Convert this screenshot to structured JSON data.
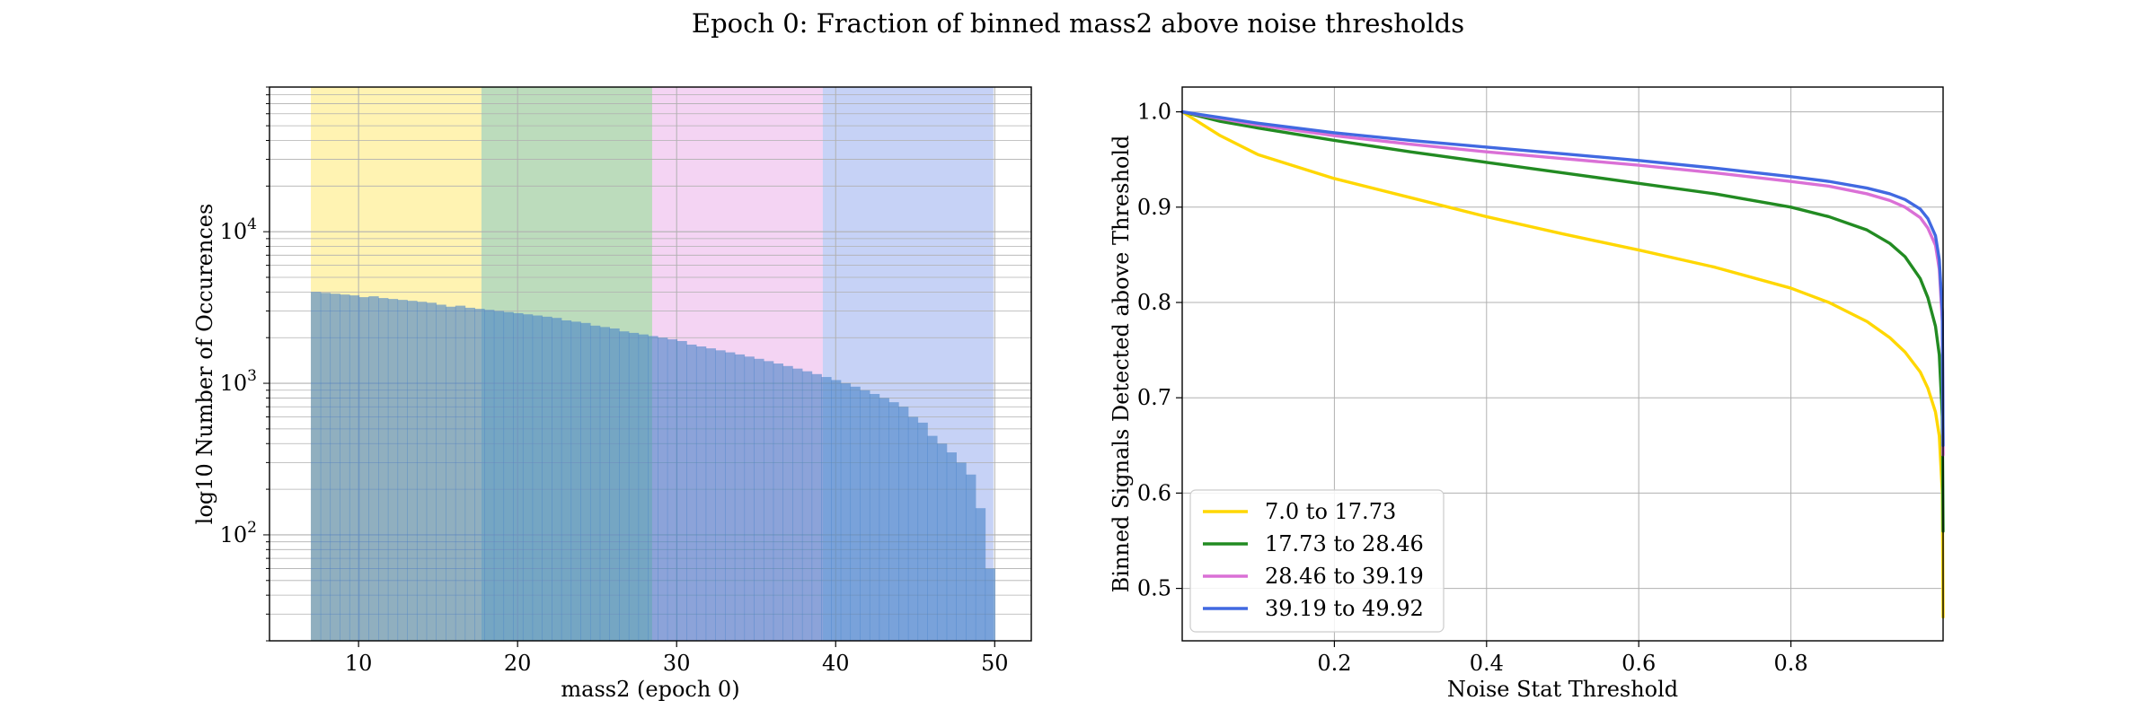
{
  "suptitle": "Epoch 0: Fraction of binned mass2 above noise thresholds",
  "colors": {
    "bands": [
      "#ffd700",
      "#228b22",
      "#da70d6",
      "#4169e1"
    ],
    "hist": "#4682c8",
    "lines": [
      "#ffd700",
      "#228b22",
      "#da70d6",
      "#4169e1"
    ],
    "grid": "#b0b0b0"
  },
  "chart_data": [
    {
      "type": "bar",
      "subtype": "histogram",
      "xlabel": "mass2 (epoch 0)",
      "ylabel": "log10 Number of Occurences",
      "xlim": [
        4.4,
        52.3
      ],
      "ylim": [
        20,
        90000
      ],
      "yscale": "log",
      "xticks": [
        10,
        20,
        30,
        40,
        50
      ],
      "yticks": [
        {
          "value": 100,
          "base": "10",
          "exp": "2"
        },
        {
          "value": 1000,
          "base": "10",
          "exp": "3"
        },
        {
          "value": 10000,
          "base": "10",
          "exp": "4"
        }
      ],
      "grid": true,
      "shaded_bands": [
        {
          "from": 7.0,
          "to": 17.73
        },
        {
          "from": 17.73,
          "to": 28.46
        },
        {
          "from": 28.46,
          "to": 39.19
        },
        {
          "from": 39.19,
          "to": 49.92
        }
      ],
      "bins": {
        "start": 7.0,
        "end": 50.0,
        "counts": [
          4000,
          3950,
          3900,
          3850,
          3800,
          3700,
          3750,
          3650,
          3600,
          3550,
          3500,
          3450,
          3400,
          3300,
          3200,
          3250,
          3150,
          3100,
          3050,
          3000,
          2950,
          2900,
          2850,
          2800,
          2750,
          2700,
          2600,
          2550,
          2500,
          2400,
          2350,
          2300,
          2200,
          2150,
          2100,
          2050,
          2000,
          1950,
          1900,
          1800,
          1750,
          1700,
          1650,
          1600,
          1550,
          1500,
          1450,
          1400,
          1350,
          1300,
          1250,
          1200,
          1150,
          1100,
          1050,
          1000,
          950,
          900,
          850,
          800,
          750,
          700,
          600,
          550,
          450,
          400,
          350,
          300,
          250,
          150,
          60
        ]
      }
    },
    {
      "type": "line",
      "xlabel": "Noise Stat Threshold",
      "ylabel": "Binned Signals Detected above Threshold",
      "xlim": [
        0.0,
        1.0
      ],
      "ylim": [
        0.445,
        1.026
      ],
      "xticks": [
        0.2,
        0.4,
        0.6,
        0.8
      ],
      "yticks": [
        0.5,
        0.6,
        0.7,
        0.8,
        0.9,
        1.0
      ],
      "grid": true,
      "legend": "lower-left",
      "series": [
        {
          "name": "7.0 to 17.73",
          "x": [
            0.0,
            0.02,
            0.05,
            0.1,
            0.2,
            0.3,
            0.4,
            0.5,
            0.6,
            0.7,
            0.8,
            0.85,
            0.9,
            0.93,
            0.95,
            0.97,
            0.98,
            0.99,
            0.995,
            0.999,
            1.0
          ],
          "y": [
            1.0,
            0.99,
            0.975,
            0.955,
            0.93,
            0.91,
            0.89,
            0.872,
            0.855,
            0.837,
            0.815,
            0.8,
            0.78,
            0.763,
            0.748,
            0.727,
            0.71,
            0.685,
            0.66,
            0.6,
            0.47
          ]
        },
        {
          "name": "17.73 to 28.46",
          "x": [
            0.0,
            0.05,
            0.1,
            0.2,
            0.3,
            0.4,
            0.5,
            0.6,
            0.7,
            0.8,
            0.85,
            0.9,
            0.93,
            0.95,
            0.97,
            0.98,
            0.99,
            0.995,
            0.999,
            1.0
          ],
          "y": [
            1.0,
            0.99,
            0.983,
            0.97,
            0.958,
            0.947,
            0.936,
            0.925,
            0.914,
            0.9,
            0.89,
            0.876,
            0.862,
            0.848,
            0.825,
            0.805,
            0.775,
            0.745,
            0.68,
            0.56
          ]
        },
        {
          "name": "28.46 to 39.19",
          "x": [
            0.0,
            0.05,
            0.1,
            0.2,
            0.3,
            0.4,
            0.5,
            0.6,
            0.7,
            0.8,
            0.85,
            0.9,
            0.93,
            0.95,
            0.97,
            0.98,
            0.99,
            0.995,
            0.999,
            1.0
          ],
          "y": [
            1.0,
            0.993,
            0.986,
            0.975,
            0.966,
            0.958,
            0.951,
            0.944,
            0.936,
            0.927,
            0.922,
            0.914,
            0.907,
            0.9,
            0.889,
            0.878,
            0.86,
            0.835,
            0.78,
            0.64
          ]
        },
        {
          "name": "39.19 to 49.92",
          "x": [
            0.0,
            0.05,
            0.1,
            0.2,
            0.3,
            0.4,
            0.5,
            0.6,
            0.7,
            0.8,
            0.85,
            0.9,
            0.93,
            0.95,
            0.97,
            0.98,
            0.99,
            0.995,
            0.999,
            1.0
          ],
          "y": [
            1.0,
            0.994,
            0.988,
            0.978,
            0.97,
            0.963,
            0.956,
            0.949,
            0.941,
            0.932,
            0.927,
            0.92,
            0.914,
            0.908,
            0.898,
            0.888,
            0.87,
            0.845,
            0.79,
            0.65
          ]
        }
      ]
    }
  ]
}
